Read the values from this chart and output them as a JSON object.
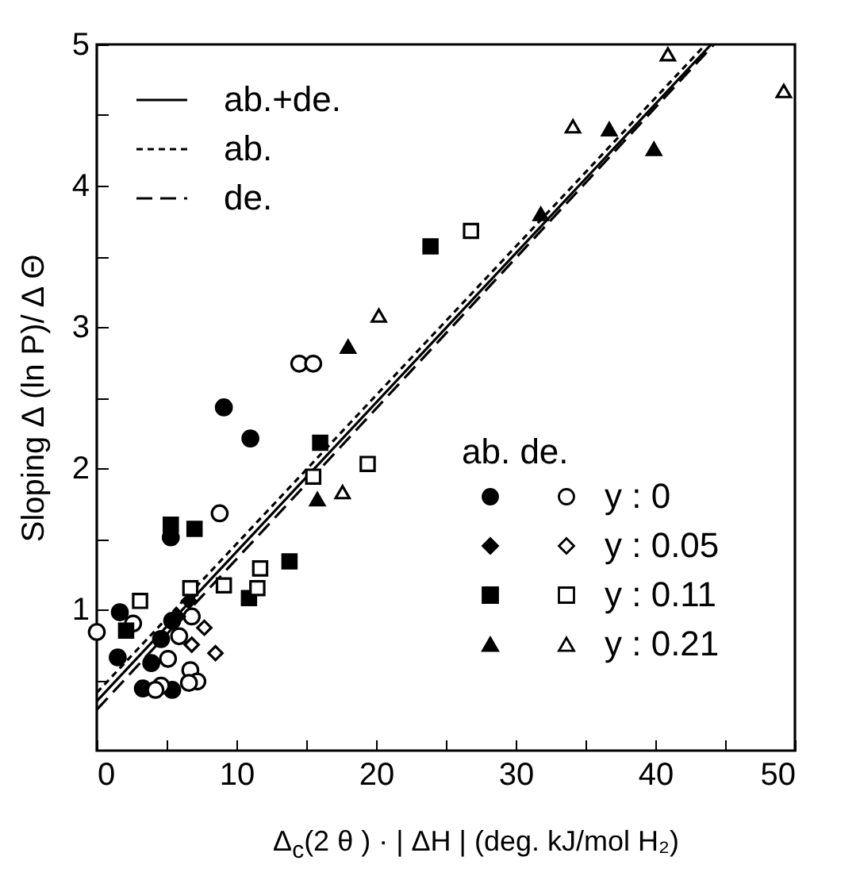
{
  "chart_data": {
    "type": "scatter",
    "xlabel": "Δ$_{c}$(2 θ ) ·  | ΔH |  (deg. kJ/mol H₂)",
    "ylabel": "Sloping  Δ (ln P)/ Δ Θ",
    "legend_title": "ab. de.",
    "legend": "top left",
    "grid": false,
    "xlim": [
      0,
      50
    ],
    "ylim": [
      0,
      5
    ],
    "xticks": [
      0,
      {
        "value": 5,
        "label": null
      },
      10,
      {
        "value": 15,
        "label": null
      },
      20,
      {
        "value": 25,
        "label": null
      },
      30,
      {
        "value": 35,
        "label": null
      },
      40,
      {
        "value": 45,
        "label": null
      },
      50
    ],
    "yticks": [
      {
        "value": 0.5,
        "label": null
      },
      1,
      {
        "value": 1.5,
        "label": null
      },
      2,
      {
        "value": 2.5,
        "label": null
      },
      3,
      {
        "value": 3.5,
        "label": null
      },
      4,
      {
        "value": 4.5,
        "label": null
      },
      5
    ],
    "series": [
      {
        "type": "line",
        "name": "ab.+de.",
        "color": "#000000",
        "line_style": "solid",
        "x": [
          0,
          44
        ],
        "values": [
          0.35,
          5
        ]
      },
      {
        "type": "line",
        "name": "ab.",
        "color": "#000000",
        "line_style": "dotted",
        "x": [
          0,
          43.6
        ],
        "values": [
          0.41,
          5
        ]
      },
      {
        "type": "line",
        "name": "de.",
        "color": "#000000",
        "line_style": "dashed",
        "x": [
          0,
          44.2
        ],
        "values": [
          0.29,
          5
        ]
      },
      {
        "color": "#000000",
        "marker": "circle",
        "x": [
          9.1,
          11.0,
          5.3,
          1.65,
          1.5,
          3.9,
          3.3,
          5.4,
          5.4,
          4.6
        ],
        "values": [
          2.43,
          2.21,
          1.51,
          0.98,
          0.66,
          0.62,
          0.44,
          0.43,
          0.92,
          0.79
        ]
      },
      {
        "name": "y : 0",
        "color": "#ffffff",
        "marker": "circle",
        "x": [
          14.5,
          15.5,
          8.8,
          0,
          2.6,
          6.8,
          5.9,
          5.1,
          6.7,
          7.2,
          4.6,
          4.2,
          6.6
        ],
        "values": [
          2.74,
          2.74,
          1.68,
          0.84,
          0.9,
          0.95,
          0.81,
          0.65,
          0.57,
          0.49,
          0.46,
          0.43,
          0.48
        ]
      },
      {
        "color": "#000000",
        "marker": "diamond",
        "x": [
          6.6,
          5.8
        ],
        "values": [
          1.06,
          0.95
        ]
      },
      {
        "name": "y : 0.05",
        "color": "#ffffff",
        "marker": "diamond",
        "x": [
          7.7,
          8.5,
          6.8
        ],
        "values": [
          0.87,
          0.69,
          0.75
        ]
      },
      {
        "color": "#000000",
        "marker": "square",
        "x": [
          23.9,
          16.0,
          13.8,
          10.9,
          7.0,
          5.3,
          2.1
        ],
        "values": [
          3.57,
          2.18,
          1.34,
          1.08,
          1.57,
          1.6,
          0.85
        ]
      },
      {
        "name": "y : 0.11",
        "color": "#ffffff",
        "marker": "square",
        "x": [
          26.8,
          19.4,
          15.5,
          11.7,
          11.5,
          9.1,
          6.7,
          3.1
        ],
        "values": [
          3.68,
          2.03,
          1.94,
          1.29,
          1.15,
          1.17,
          1.15,
          1.06
        ]
      },
      {
        "color": "#000000",
        "marker": "triangle",
        "x": [
          36.7,
          39.9,
          31.8,
          18.0,
          15.8
        ],
        "values": [
          4.4,
          4.26,
          3.8,
          2.86,
          1.78
        ]
      },
      {
        "name": "y : 0.21",
        "color": "#ffffff",
        "marker": "triangle",
        "x": [
          40.9,
          49.2,
          34.1,
          20.2,
          17.6
        ],
        "values": [
          4.93,
          4.67,
          4.42,
          3.08,
          1.83
        ]
      }
    ]
  }
}
